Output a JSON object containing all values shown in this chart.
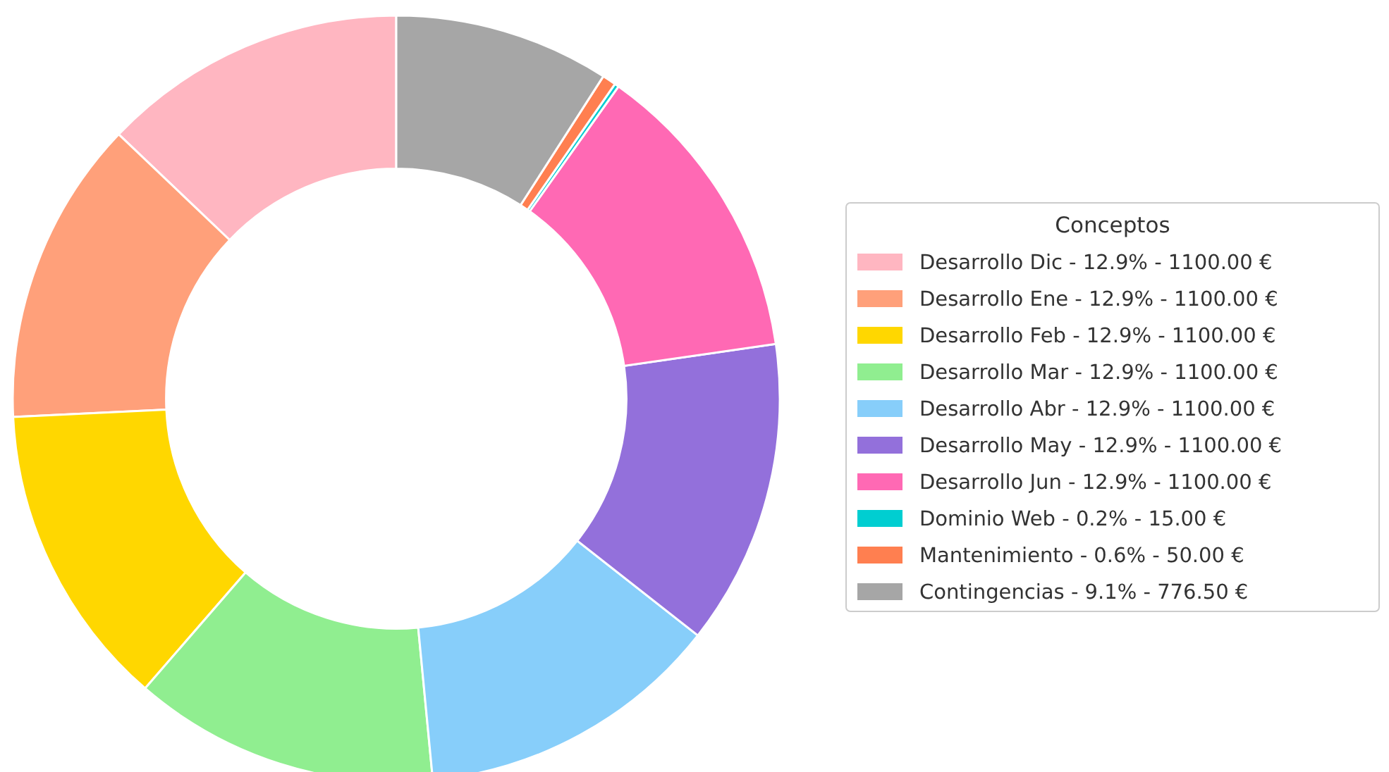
{
  "chart_data": {
    "type": "donut",
    "legend_title": "Conceptos",
    "legend": "right",
    "categories": [
      "Desarrollo Dic - 12.9% - 1100.00 €",
      "Desarrollo Ene - 12.9% - 1100.00 €",
      "Desarrollo Feb - 12.9% - 1100.00 €",
      "Desarrollo Mar - 12.9% - 1100.00 €",
      "Desarrollo Abr - 12.9% - 1100.00 €",
      "Desarrollo May - 12.9% - 1100.00 €",
      "Desarrollo Jun - 12.9% - 1100.00 €",
      "Dominio Web - 0.2% - 15.00 €",
      "Mantenimiento - 0.6% - 50.00 €",
      "Contingencias - 9.1% - 776.50 €"
    ],
    "values": [
      12.88,
      12.88,
      12.88,
      12.88,
      12.88,
      12.88,
      12.88,
      0.18,
      0.58,
      9.08
    ],
    "colors": [
      "#ffb6c1",
      "#ffa07a",
      "#ffd700",
      "#90ee90",
      "#87cefa",
      "#9370db",
      "#ff69b4",
      "#00ced1",
      "#ff7f50",
      "#a6a6a6"
    ]
  }
}
